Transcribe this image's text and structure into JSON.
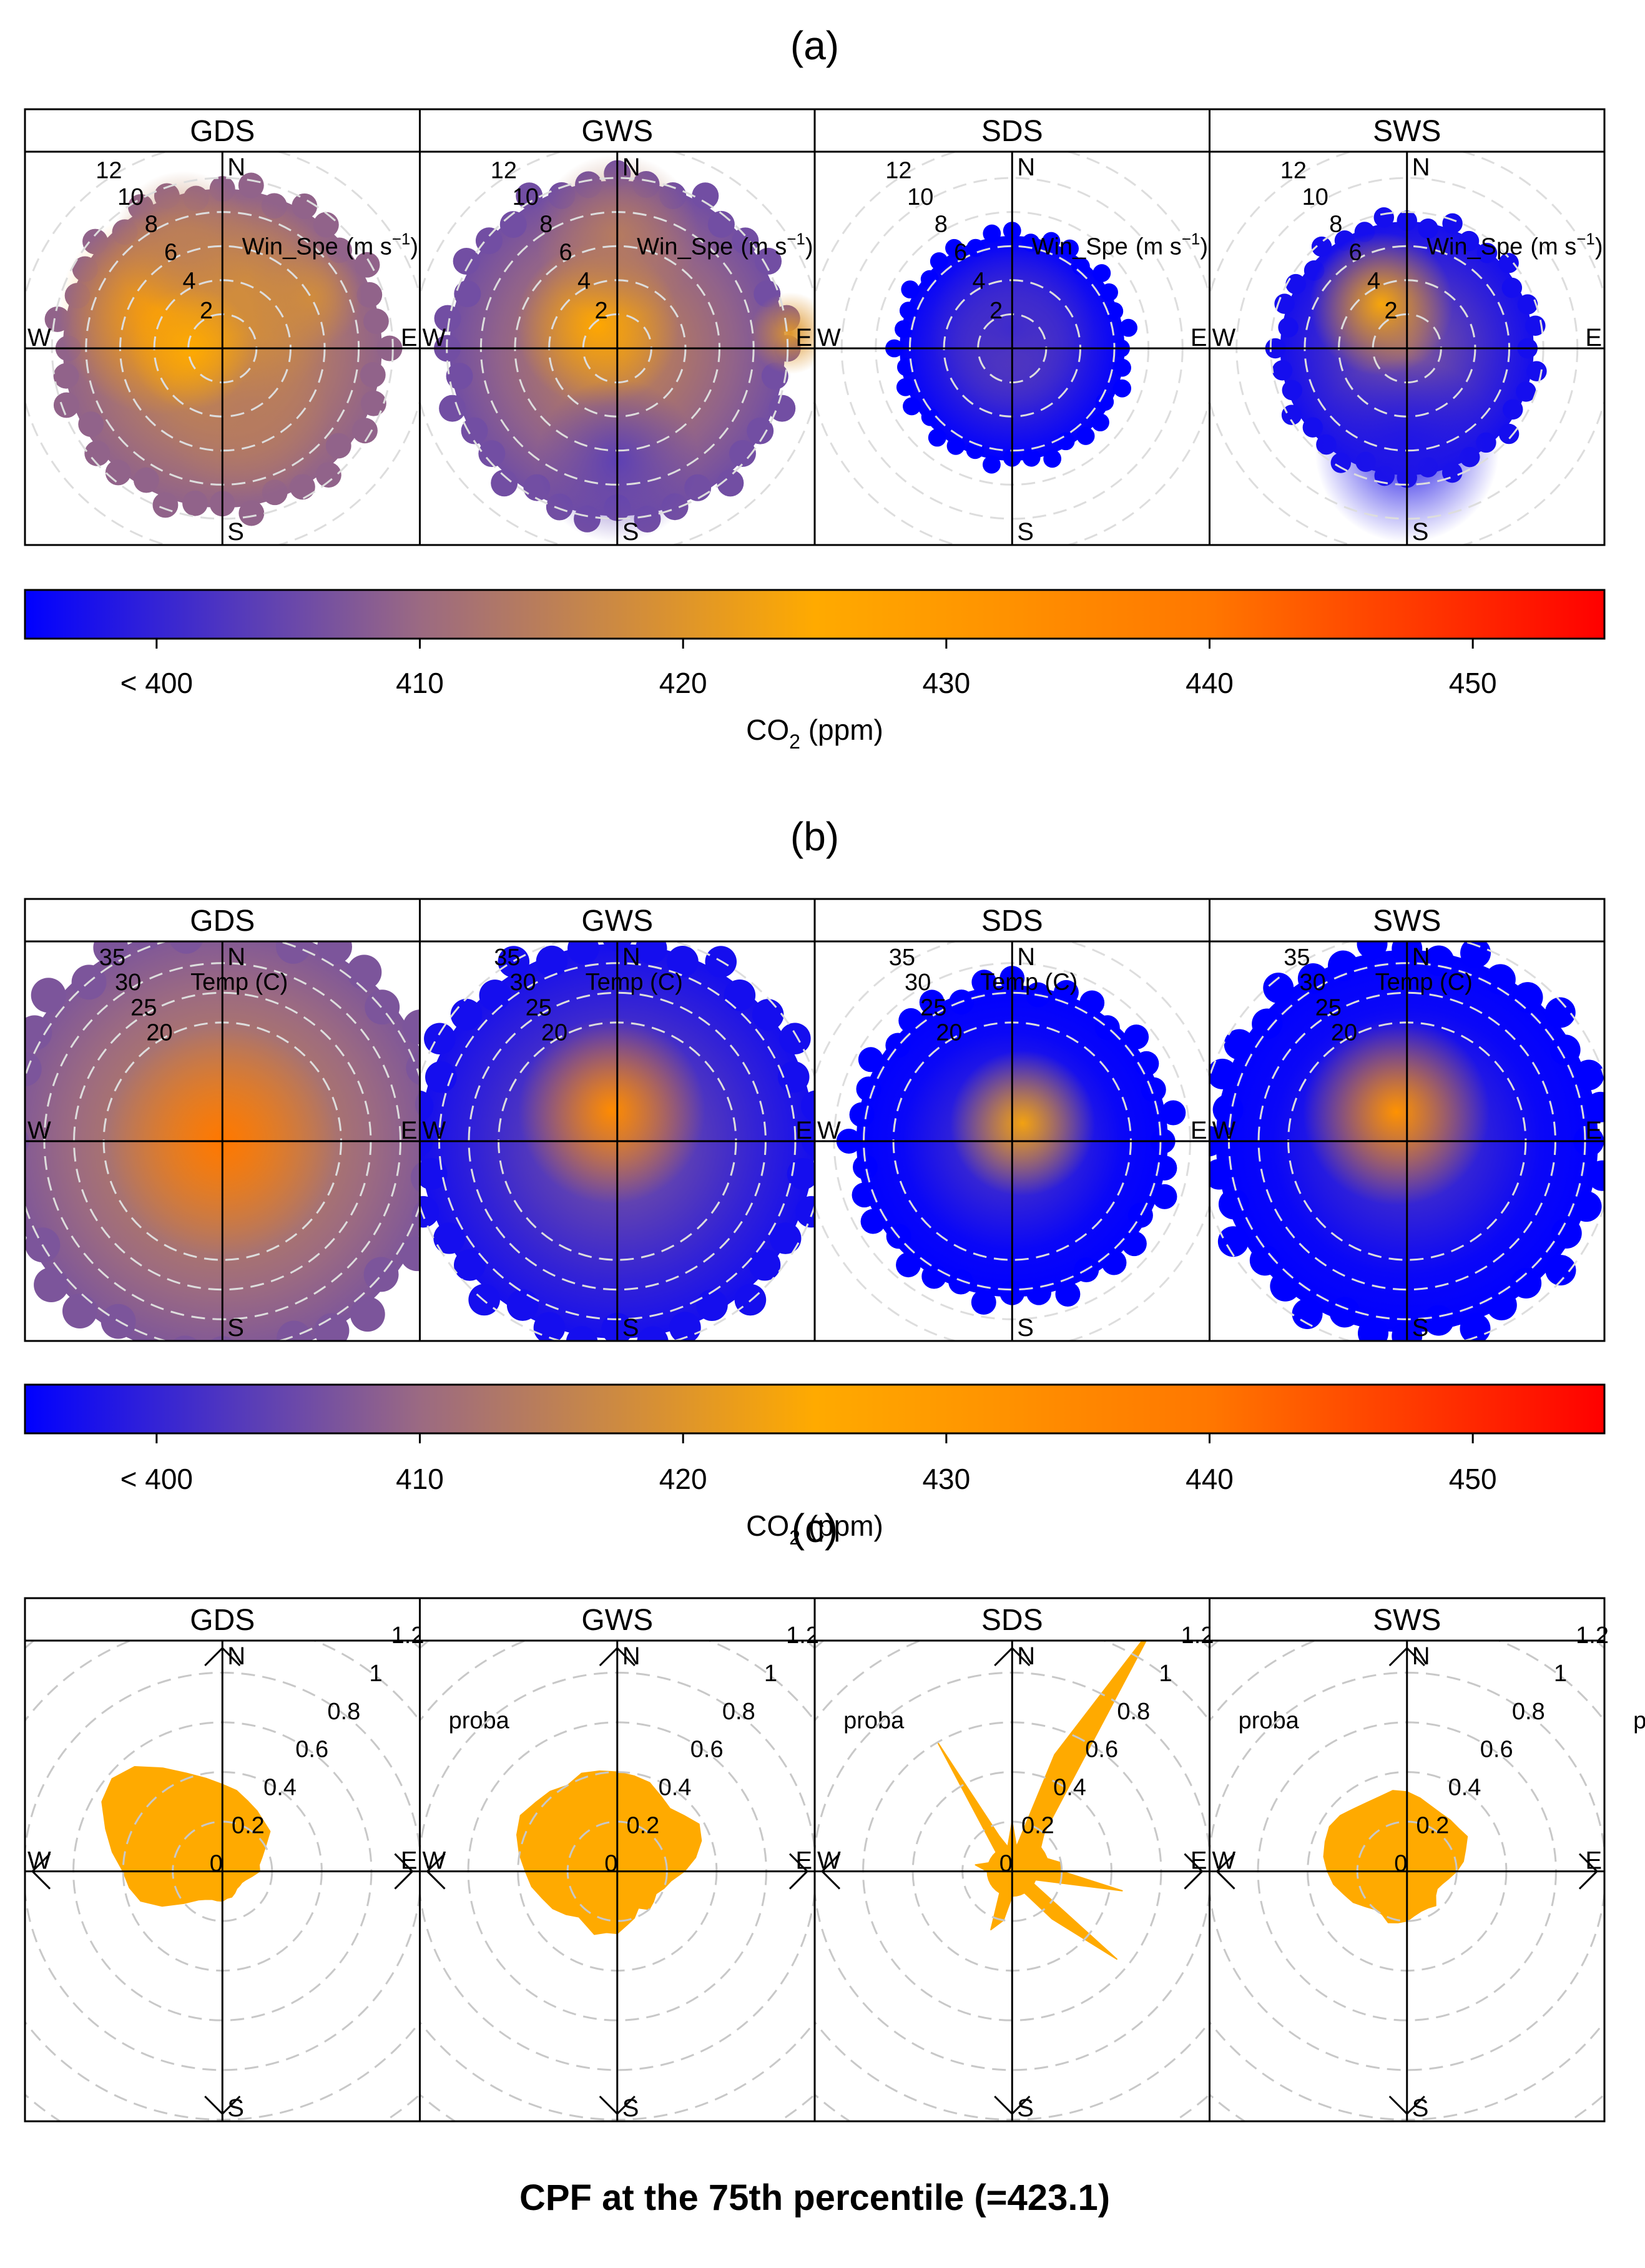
{
  "chart_data": [
    {
      "type": "heatmap",
      "label": "(a)",
      "variable_label": "Win_Spe",
      "variable_unit": "(m s",
      "variable_unit_exp": "−1",
      "variable_unit_end": ")",
      "rings": [
        "2",
        "4",
        "6",
        "8",
        "10",
        "12"
      ],
      "ring_values": [
        2,
        4,
        6,
        8,
        10,
        12
      ],
      "panels": [
        {
          "name": "GDS",
          "blobs": [
            {
              "a": -60,
              "r": 0.35,
              "s": 0.5,
              "v": 428
            },
            {
              "a": 20,
              "r": 0.25,
              "s": 0.5,
              "v": 418
            },
            {
              "a": 160,
              "r": 0.35,
              "s": 0.4,
              "v": 414
            },
            {
              "a": -20,
              "r": 0.55,
              "s": 0.35,
              "v": 415
            },
            {
              "a": -90,
              "r": 0.15,
              "s": 0.3,
              "v": 425
            },
            {
              "a": 60,
              "r": 0.5,
              "s": 0.25,
              "v": 418
            }
          ],
          "bg": 412,
          "extent": 0.78
        },
        {
          "name": "GWS",
          "blobs": [
            {
              "a": -40,
              "r": 0.15,
              "s": 0.4,
              "v": 426
            },
            {
              "a": 0,
              "r": 0.55,
              "s": 0.4,
              "v": 414
            },
            {
              "a": 180,
              "r": 0.55,
              "s": 0.4,
              "v": 404
            },
            {
              "a": 85,
              "r": 0.85,
              "s": 0.2,
              "v": 420
            }
          ],
          "bg": 409,
          "extent": 0.82
        },
        {
          "name": "SDS",
          "blobs": [
            {
              "a": 0,
              "r": 0.1,
              "s": 0.4,
              "v": 401
            }
          ],
          "bg": 398,
          "extent": 0.55
        },
        {
          "name": "SWS",
          "blobs": [
            {
              "a": -30,
              "r": 0.25,
              "s": 0.35,
              "v": 424
            },
            {
              "a": 180,
              "r": 0.5,
              "s": 0.45,
              "v": 398
            }
          ],
          "bg": 400,
          "extent": 0.62
        }
      ]
    },
    {
      "type": "heatmap",
      "label": "(b)",
      "variable_label": "Temp (C)",
      "rings": [
        "20",
        "25",
        "30",
        "35"
      ],
      "ring_values": [
        20,
        25,
        30,
        35
      ],
      "panels": [
        {
          "name": "GDS",
          "blobs": [
            {
              "a": 0,
              "r": 0.0,
              "s": 0.55,
              "v": 440
            }
          ],
          "bg": 410,
          "extent": 1.05
        },
        {
          "name": "GWS",
          "blobs": [
            {
              "a": -10,
              "r": 0.15,
              "s": 0.45,
              "v": 434
            }
          ],
          "bg": 400,
          "extent": 0.95
        },
        {
          "name": "SDS",
          "blobs": [
            {
              "a": 30,
              "r": 0.1,
              "s": 0.35,
              "v": 423
            }
          ],
          "bg": 396,
          "extent": 0.75
        },
        {
          "name": "SWS",
          "blobs": [
            {
              "a": -20,
              "r": 0.15,
              "s": 0.45,
              "v": 432
            }
          ],
          "bg": 396,
          "extent": 0.92
        }
      ]
    },
    {
      "type": "line",
      "label": "(c)",
      "variable_label": "proba",
      "rings": [
        "0",
        "0.2",
        "0.4",
        "0.6",
        "0.8",
        "1",
        "1.2"
      ],
      "ring_values": [
        0,
        0.2,
        0.4,
        0.6,
        0.8,
        1.0,
        1.2
      ],
      "fill_color": "#FFAA00",
      "panels": [
        {
          "name": "GDS",
          "directions": [
            0,
            10,
            20,
            30,
            40,
            50,
            60,
            70,
            80,
            90,
            100,
            110,
            120,
            130,
            140,
            150,
            160,
            170,
            180,
            190,
            200,
            210,
            220,
            230,
            240,
            250,
            260,
            270,
            280,
            290,
            300,
            310,
            320,
            330,
            340,
            350
          ],
          "probability": [
            0.35,
            0.33,
            0.3,
            0.28,
            0.26,
            0.25,
            0.2,
            0.17,
            0.15,
            0.15,
            0.12,
            0.1,
            0.09,
            0.09,
            0.09,
            0.1,
            0.11,
            0.11,
            0.12,
            0.12,
            0.12,
            0.13,
            0.15,
            0.2,
            0.28,
            0.35,
            0.38,
            0.4,
            0.45,
            0.5,
            0.56,
            0.58,
            0.55,
            0.48,
            0.42,
            0.38
          ]
        },
        {
          "name": "GWS",
          "directions": [
            0,
            10,
            20,
            30,
            40,
            50,
            60,
            70,
            80,
            90,
            100,
            110,
            120,
            130,
            140,
            150,
            160,
            170,
            180,
            190,
            200,
            210,
            220,
            230,
            240,
            250,
            260,
            270,
            280,
            290,
            300,
            310,
            320,
            330,
            340,
            350
          ],
          "probability": [
            0.4,
            0.39,
            0.38,
            0.35,
            0.33,
            0.35,
            0.38,
            0.36,
            0.32,
            0.27,
            0.22,
            0.2,
            0.18,
            0.19,
            0.2,
            0.17,
            0.2,
            0.22,
            0.25,
            0.25,
            0.27,
            0.25,
            0.24,
            0.27,
            0.3,
            0.32,
            0.35,
            0.37,
            0.4,
            0.43,
            0.45,
            0.43,
            0.42,
            0.4,
            0.42,
            0.41
          ]
        },
        {
          "name": "SDS",
          "directions": [
            0,
            10,
            20,
            30,
            40,
            50,
            60,
            70,
            80,
            90,
            100,
            110,
            120,
            130,
            140,
            150,
            160,
            170,
            180,
            190,
            200,
            210,
            220,
            230,
            240,
            250,
            260,
            270,
            280,
            290,
            300,
            310,
            320,
            330,
            340,
            350
          ],
          "probability": [
            0.2,
            0.1,
            0.5,
            1.15,
            0.2,
            0.15,
            0.15,
            0.15,
            0.2,
            0.2,
            0.45,
            0.1,
            0.1,
            0.55,
            0.25,
            0.1,
            0.1,
            0.1,
            0.1,
            0.2,
            0.25,
            0.1,
            0.1,
            0.1,
            0.1,
            0.1,
            0.1,
            0.1,
            0.15,
            0.1,
            0.1,
            0.1,
            0.1,
            0.6,
            0.15,
            0.1
          ]
        },
        {
          "name": "SWS",
          "directions": [
            0,
            10,
            20,
            30,
            40,
            50,
            60,
            70,
            80,
            90,
            100,
            110,
            120,
            130,
            140,
            150,
            160,
            170,
            180,
            190,
            200,
            210,
            220,
            230,
            240,
            250,
            260,
            270,
            280,
            290,
            300,
            310,
            320,
            330,
            340,
            350
          ],
          "probability": [
            0.32,
            0.3,
            0.28,
            0.27,
            0.27,
            0.27,
            0.28,
            0.25,
            0.23,
            0.2,
            0.17,
            0.15,
            0.14,
            0.15,
            0.18,
            0.17,
            0.17,
            0.18,
            0.2,
            0.21,
            0.22,
            0.2,
            0.2,
            0.22,
            0.25,
            0.27,
            0.3,
            0.32,
            0.34,
            0.35,
            0.36,
            0.35,
            0.33,
            0.32,
            0.32,
            0.33
          ]
        }
      ]
    }
  ],
  "compass": {
    "n": "N",
    "e": "E",
    "s": "S",
    "w": "W"
  },
  "colorbar": {
    "title_prefix": "CO",
    "title_sub": "2",
    "title_suffix": " (ppm)",
    "ticks": [
      "< 400",
      "410",
      "420",
      "430",
      "440",
      "450"
    ],
    "tick_values": [
      400,
      410,
      420,
      430,
      440,
      450
    ],
    "range": [
      395,
      455
    ],
    "colors": [
      "#0000FF",
      "#9B6A82",
      "#FFAA00",
      "#FF7700",
      "#FF0000"
    ]
  },
  "footer_title": "CPF at the 75th percentile (=423.1)"
}
